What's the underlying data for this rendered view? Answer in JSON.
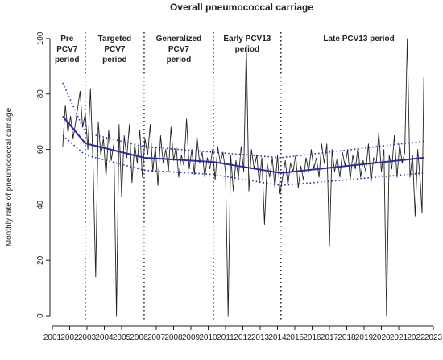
{
  "chart_data": {
    "type": "line",
    "title": "Overall pneumococcal carriage",
    "ylabel": "Monthly rate of pneumococcal carriage",
    "xlim": [
      2000.8,
      2023.2
    ],
    "ylim": [
      -2.3,
      102.3
    ],
    "xticks": [
      2001,
      2002,
      2003,
      2004,
      2005,
      2006,
      2007,
      2008,
      2009,
      2010,
      2011,
      2012,
      2013,
      2014,
      2015,
      2016,
      2017,
      2018,
      2019,
      2020,
      2021,
      2022,
      2023
    ],
    "yticks": [
      0,
      20,
      40,
      60,
      80,
      100
    ],
    "breaks": [
      2002.9,
      2006.3,
      2010.3,
      2014.2
    ],
    "periods": [
      [
        "Pre",
        "PCV7",
        "period"
      ],
      [
        "Targeted",
        "PCV7",
        "period"
      ],
      [
        "Generalized",
        "PCV7",
        "period"
      ],
      [
        "Early PCV13",
        "period"
      ],
      [
        "Late PCV13 period"
      ]
    ],
    "series": [
      {
        "color": "#222222",
        "style": "solid",
        "width": 0.9,
        "x": [
          2001.6,
          2001.75,
          2001.9,
          2002.05,
          2002.2,
          2002.35,
          2002.6,
          2002.75,
          2002.9,
          2003.05,
          2003.2,
          2003.35,
          2003.5,
          2003.65,
          2003.8,
          2003.95,
          2004.1,
          2004.25,
          2004.4,
          2004.55,
          2004.7,
          2004.85,
          2005.0,
          2005.15,
          2005.3,
          2005.45,
          2005.6,
          2005.75,
          2005.9,
          2006.05,
          2006.2,
          2006.35,
          2006.5,
          2006.65,
          2006.8,
          2006.95,
          2007.1,
          2007.25,
          2007.4,
          2007.55,
          2007.7,
          2007.85,
          2008.0,
          2008.15,
          2008.3,
          2008.45,
          2008.6,
          2008.75,
          2008.9,
          2009.05,
          2009.2,
          2009.35,
          2009.5,
          2009.65,
          2009.8,
          2009.95,
          2010.1,
          2010.25,
          2010.4,
          2010.55,
          2010.7,
          2010.85,
          2011.0,
          2011.15,
          2011.3,
          2011.45,
          2011.6,
          2011.75,
          2011.9,
          2012.05,
          2012.2,
          2012.35,
          2012.5,
          2012.65,
          2012.8,
          2012.95,
          2013.1,
          2013.25,
          2013.4,
          2013.55,
          2013.7,
          2013.85,
          2014.0,
          2014.15,
          2014.3,
          2014.45,
          2014.6,
          2014.75,
          2014.9,
          2015.05,
          2015.2,
          2015.35,
          2015.5,
          2015.65,
          2015.8,
          2015.95,
          2016.1,
          2016.25,
          2016.4,
          2016.55,
          2016.7,
          2016.85,
          2017.0,
          2017.15,
          2017.3,
          2017.45,
          2017.6,
          2017.75,
          2017.9,
          2018.05,
          2018.2,
          2018.35,
          2018.5,
          2018.65,
          2018.8,
          2018.95,
          2019.1,
          2019.25,
          2019.4,
          2019.55,
          2019.7,
          2019.85,
          2020.0,
          2020.15,
          2020.3,
          2020.45,
          2020.6,
          2020.75,
          2020.9,
          2021.05,
          2021.2,
          2021.35,
          2021.5,
          2021.65,
          2021.8,
          2021.95,
          2022.1,
          2022.25,
          2022.35,
          2022.45
        ],
        "values": [
          61,
          76,
          66,
          72,
          64,
          70,
          81,
          68,
          73,
          60,
          82,
          55,
          14,
          70,
          58,
          64,
          50,
          67,
          56,
          62,
          0,
          69,
          43,
          65,
          57,
          69,
          48,
          62,
          55,
          67,
          50,
          64,
          58,
          69,
          52,
          61,
          47,
          65,
          55,
          60,
          52,
          68,
          56,
          61,
          50,
          58,
          54,
          71,
          53,
          60,
          51,
          65,
          55,
          59,
          50,
          57,
          53,
          60,
          49,
          61,
          55,
          59,
          52,
          0,
          58,
          45,
          56,
          50,
          61,
          52,
          98,
          45,
          60,
          53,
          58,
          48,
          57,
          33,
          55,
          50,
          57,
          46,
          58,
          44,
          50,
          56,
          47,
          55,
          52,
          58,
          46,
          54,
          49,
          57,
          52,
          60,
          53,
          57,
          50,
          62,
          55,
          62,
          25,
          60,
          52,
          57,
          50,
          59,
          54,
          60,
          49,
          58,
          53,
          61,
          50,
          56,
          52,
          62,
          48,
          57,
          55,
          66,
          52,
          60,
          0,
          58,
          53,
          65,
          50,
          62,
          55,
          59,
          100,
          50,
          58,
          36,
          60,
          48,
          37,
          86
        ]
      },
      {
        "color": "#2b2ba6",
        "style": "solid",
        "width": 2,
        "x": [
          2001.6,
          2002.9,
          2006.3,
          2010.3,
          2014.2,
          2022.45
        ],
        "values": [
          72,
          62.2,
          57,
          55.5,
          51.5,
          57
        ]
      },
      {
        "color": "#2b2ba6",
        "style": "dotted",
        "width": 1.6,
        "x": [
          2001.6,
          2002.9,
          2006.3,
          2010.3,
          2014.2,
          2022.45
        ],
        "values": [
          84,
          66,
          61,
          59,
          57,
          63
        ]
      },
      {
        "color": "#2b2ba6",
        "style": "dotted",
        "width": 1.6,
        "x": [
          2001.6,
          2002.9,
          2006.3,
          2010.3,
          2014.2,
          2022.45
        ],
        "values": [
          65,
          58,
          52.5,
          51,
          47,
          51.5
        ]
      }
    ]
  }
}
